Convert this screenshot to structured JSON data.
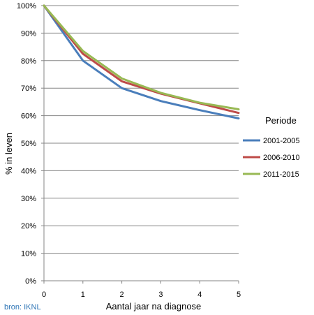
{
  "chart_data": {
    "type": "line",
    "x": [
      0,
      1,
      2,
      3,
      4,
      5
    ],
    "xlabel": "Aantal jaar na diagnose",
    "ylabel": "% in leven",
    "xlim": [
      0,
      5
    ],
    "ylim": [
      0,
      100
    ],
    "y_ticks": [
      "0%",
      "10%",
      "20%",
      "30%",
      "40%",
      "50%",
      "60%",
      "70%",
      "80%",
      "90%",
      "100%"
    ],
    "x_ticks": [
      "0",
      "1",
      "2",
      "3",
      "4",
      "5"
    ],
    "grid": "horizontal",
    "legend_title": "Periode",
    "legend_position": "right",
    "series": [
      {
        "name": "2001-2005",
        "color": "#4a7ebb",
        "values": [
          100,
          80,
          70,
          65.3,
          62,
          59
        ]
      },
      {
        "name": "2006-2010",
        "color": "#be4b48",
        "values": [
          100,
          82.5,
          72.5,
          68,
          64.5,
          61
        ]
      },
      {
        "name": "2011-2015",
        "color": "#98b954",
        "values": [
          100,
          83.5,
          73.5,
          68.3,
          64.7,
          62.3
        ]
      }
    ]
  },
  "source_text": "bron: IKNL"
}
